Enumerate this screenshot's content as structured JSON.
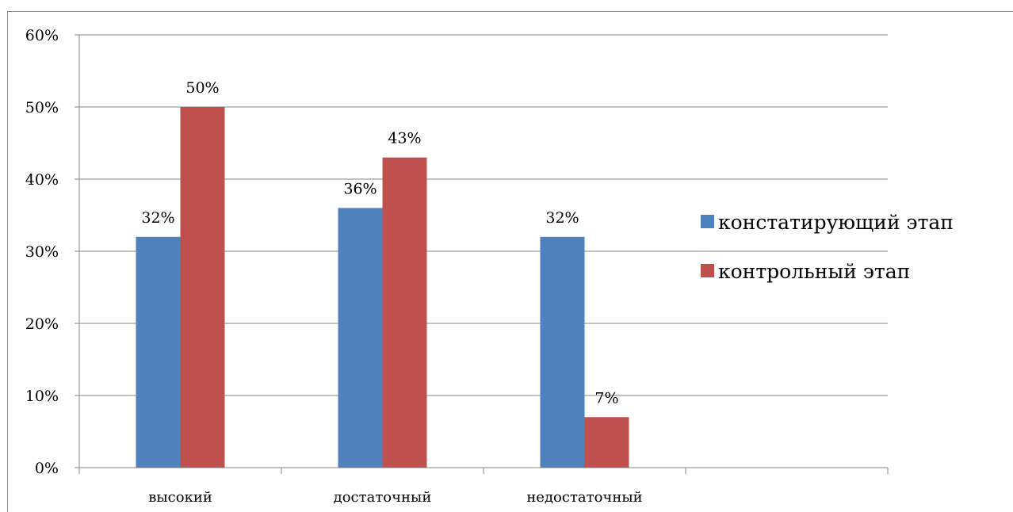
{
  "chart_data": {
    "type": "bar",
    "categories": [
      "высокий",
      "достаточный",
      "недостаточный",
      ""
    ],
    "series": [
      {
        "name": "констатирующий этап",
        "values": [
          32,
          36,
          32,
          null
        ],
        "labels": [
          "32%",
          "36%",
          "32%",
          ""
        ],
        "color": "#4f81bd"
      },
      {
        "name": "контрольный этап",
        "values": [
          50,
          43,
          7,
          null
        ],
        "labels": [
          "50%",
          "43%",
          "7%",
          ""
        ],
        "color": "#c0504d"
      }
    ],
    "ylim": [
      0,
      60
    ],
    "yticks": [
      "0%",
      "10%",
      "20%",
      "30%",
      "40%",
      "50%",
      "60%"
    ],
    "gridlines": true,
    "legend": "right",
    "title": "",
    "xlabel": "",
    "ylabel": ""
  }
}
